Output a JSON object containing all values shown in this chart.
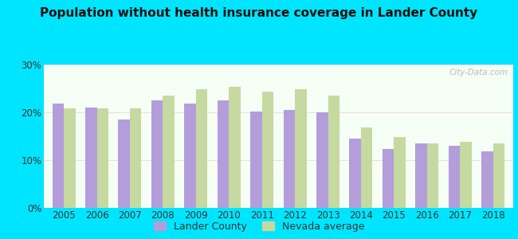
{
  "title": "Population without health insurance coverage in Lander County",
  "years": [
    2005,
    2006,
    2007,
    2008,
    2009,
    2010,
    2011,
    2012,
    2013,
    2014,
    2015,
    2016,
    2017,
    2018
  ],
  "lander_county": [
    21.8,
    21.0,
    18.5,
    22.5,
    21.8,
    22.5,
    20.2,
    20.5,
    20.0,
    14.5,
    12.3,
    13.5,
    13.0,
    11.8
  ],
  "nevada_average": [
    20.8,
    20.8,
    20.8,
    23.5,
    24.8,
    25.3,
    24.3,
    24.8,
    23.5,
    16.8,
    14.8,
    13.5,
    13.8,
    13.5
  ],
  "lander_color": "#b39ddb",
  "nevada_color": "#c5d9a0",
  "background_outer": "#00e5ff",
  "background_inner_top": "#f5fff5",
  "background_inner_bottom": "#e8ffe8",
  "title_color": "#111111",
  "axis_text_color": "#333333",
  "ylim": [
    0,
    30
  ],
  "yticks": [
    0,
    10,
    20,
    30
  ],
  "ytick_labels": [
    "0%",
    "10%",
    "20%",
    "30%"
  ],
  "legend_lander": "Lander County",
  "legend_nevada": "Nevada average",
  "bar_width": 0.35
}
